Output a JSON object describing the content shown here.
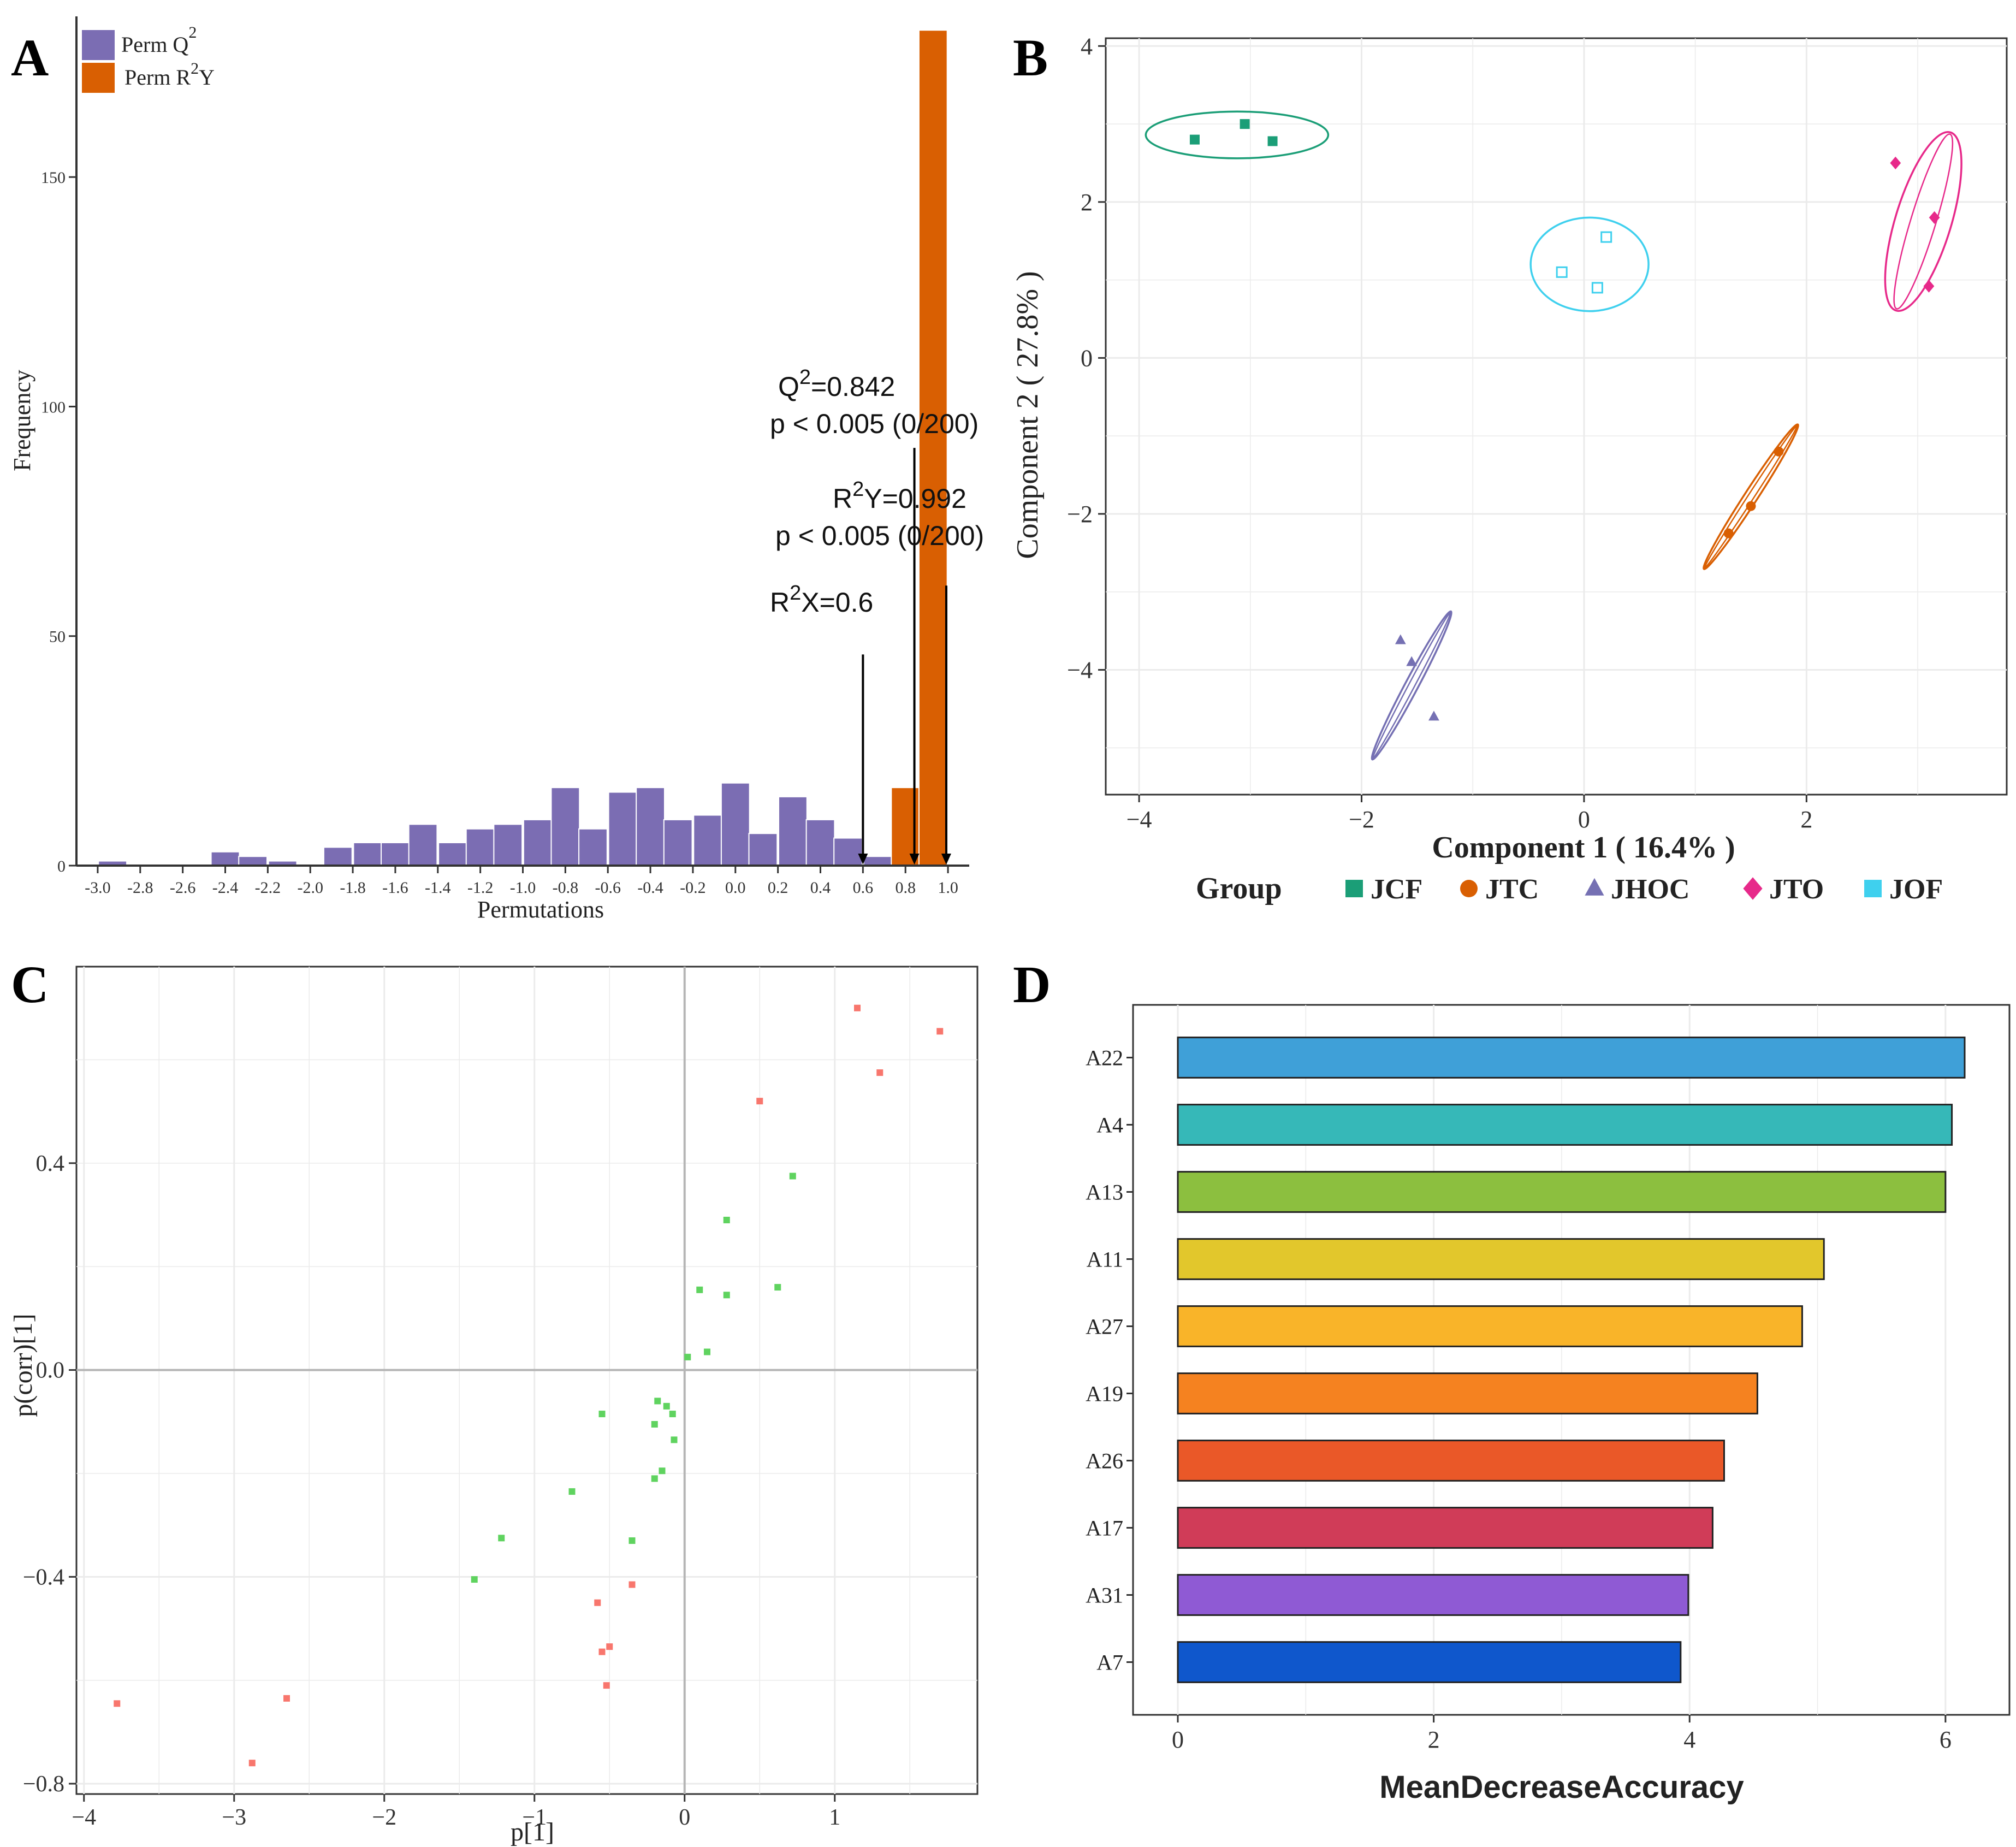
{
  "chart_data": [
    {
      "panel": "A",
      "type": "bar",
      "xlabel": "Permutations",
      "ylabel": "Frequency",
      "xlim": [
        -3.1,
        1.1
      ],
      "ylim": [
        0,
        185
      ],
      "xticks": [
        "-3.0",
        "-2.8",
        "-2.6",
        "-2.4",
        "-2.2",
        "-2.0",
        "-1.8",
        "-1.6",
        "-1.4",
        "-1.2",
        "-1.0",
        "-0.8",
        "-0.6",
        "-0.4",
        "-0.2",
        "0.0",
        "0.2",
        "0.4",
        "0.6",
        "0.8",
        "1.0"
      ],
      "xtick_values": [
        -3.0,
        -2.8,
        -2.6,
        -2.4,
        -2.2,
        -2.0,
        -1.8,
        -1.6,
        -1.4,
        -1.2,
        -1.0,
        -0.8,
        -0.6,
        -0.4,
        -0.2,
        0.0,
        0.2,
        0.4,
        0.6,
        0.8,
        1.0
      ],
      "yticks": [
        "0",
        "50",
        "100",
        "150"
      ],
      "ytick_values": [
        0,
        50,
        100,
        150
      ],
      "bin_width": 0.133,
      "series": [
        {
          "name": "Perm Q2",
          "legend_label": "Perm Q",
          "legend_sup": "2",
          "color": "#7b6db3",
          "x": [
            -2.93,
            -2.4,
            -2.27,
            -2.13,
            -1.87,
            -1.73,
            -1.6,
            -1.47,
            -1.33,
            -1.2,
            -1.07,
            -0.93,
            -0.8,
            -0.67,
            -0.53,
            -0.4,
            -0.27,
            -0.13,
            0.0,
            0.13,
            0.27,
            0.4,
            0.53,
            0.67
          ],
          "values": [
            1,
            3,
            2,
            1,
            4,
            5,
            5,
            9,
            5,
            8,
            9,
            10,
            17,
            8,
            16,
            17,
            10,
            11,
            18,
            7,
            15,
            10,
            6,
            2
          ]
        },
        {
          "name": "Perm R2Y",
          "legend_label": "Perm R",
          "legend_sup": "2",
          "legend_suffix": "Y",
          "color": "#d95f02",
          "x": [
            0.8,
            0.93
          ],
          "values": [
            17,
            182
          ]
        }
      ],
      "annotations": [
        {
          "lines": [
            [
              "Q",
              "2",
              "=0.842"
            ],
            [
              "p < 0.005 (0/200)"
            ]
          ],
          "arrow_x": 0.842,
          "arrow_top": 91
        },
        {
          "lines": [
            [
              "R",
              "2",
              "Y=0.992"
            ],
            [
              "p < 0.005 (0/200)"
            ]
          ],
          "arrow_x": 0.992,
          "arrow_top": 61
        },
        {
          "lines": [
            [
              "R",
              "2",
              "X=0.6"
            ]
          ],
          "arrow_x": 0.6,
          "arrow_top": 46
        }
      ]
    },
    {
      "panel": "B",
      "type": "scatter",
      "xlabel": "Component 1 ( 16.4% )",
      "ylabel": "Component 2 ( 27.8% )",
      "xlim": [
        -4.3,
        3.8
      ],
      "ylim": [
        -5.6,
        4.1
      ],
      "xticks": [
        "−4",
        "−2",
        "0",
        "2"
      ],
      "xtick_values": [
        -4,
        -2,
        0,
        2
      ],
      "yticks": [
        "−4",
        "−2",
        "0",
        "2",
        "4"
      ],
      "ytick_values": [
        -4,
        -2,
        0,
        2,
        4
      ],
      "legend_title": "Group",
      "series": [
        {
          "name": "JCF",
          "color": "#1b9e77",
          "shape": "square-filled",
          "points": [
            [
              -3.5,
              2.8
            ],
            [
              -3.05,
              3.0
            ],
            [
              -2.8,
              2.78
            ]
          ]
        },
        {
          "name": "JTC",
          "color": "#d95f02",
          "shape": "circle-filled",
          "points": [
            [
              1.3,
              -2.25
            ],
            [
              1.5,
              -1.9
            ],
            [
              1.75,
              -1.2
            ]
          ]
        },
        {
          "name": "JHOC",
          "color": "#7570b3",
          "shape": "triangle-filled",
          "points": [
            [
              -1.65,
              -3.62
            ],
            [
              -1.55,
              -3.9
            ],
            [
              -1.35,
              -4.6
            ]
          ]
        },
        {
          "name": "JTO",
          "color": "#e7298a",
          "shape": "diamond-filled",
          "points": [
            [
              2.8,
              2.5
            ],
            [
              3.15,
              1.8
            ],
            [
              3.1,
              0.92
            ]
          ]
        },
        {
          "name": "JOF",
          "color": "#3fd0ee",
          "shape": "square-open",
          "points": [
            [
              0.2,
              1.55
            ],
            [
              -0.2,
              1.1
            ],
            [
              0.12,
              0.9
            ]
          ]
        }
      ],
      "ellipses": [
        {
          "group": "JCF",
          "cx": -3.12,
          "cy": 2.86,
          "rx": 0.82,
          "ry": 0.3,
          "angle": 0
        },
        {
          "group": "JOF",
          "cx": 0.05,
          "cy": 1.2,
          "rx": 0.53,
          "ry": 0.6,
          "angle": 0
        },
        {
          "group": "JTO",
          "cx": 3.05,
          "cy": 1.75,
          "rx": 2.0,
          "ry": 0.3,
          "angle": -73
        },
        {
          "group": "JTC",
          "cx": 1.5,
          "cy": -1.78,
          "rx": 1.85,
          "ry": 0.05,
          "angle": -57
        },
        {
          "group": "JHOC",
          "cx": -1.55,
          "cy": -4.2,
          "rx": 1.8,
          "ry": 0.05,
          "angle": -62
        }
      ]
    },
    {
      "panel": "C",
      "type": "scatter",
      "xlabel": "p[1]",
      "ylabel": "p(corr)[1]",
      "xlim": [
        -4.05,
        1.95
      ],
      "ylim": [
        -0.82,
        0.78
      ],
      "xticks": [
        "−4",
        "−3",
        "−2",
        "−1",
        "0",
        "1"
      ],
      "xtick_values": [
        -4,
        -3,
        -2,
        -1,
        0,
        1
      ],
      "yticks": [
        "−0.8",
        "−0.4",
        "0.0",
        "0.4"
      ],
      "ytick_values": [
        -0.8,
        -0.4,
        0.0,
        0.4
      ],
      "series": [
        {
          "name": "red",
          "color": "#f8766d",
          "points": [
            [
              1.15,
              0.7
            ],
            [
              1.7,
              0.655
            ],
            [
              1.3,
              0.575
            ],
            [
              0.5,
              0.52
            ],
            [
              -0.35,
              -0.415
            ],
            [
              -0.58,
              -0.45
            ],
            [
              -0.55,
              -0.545
            ],
            [
              -0.5,
              -0.535
            ],
            [
              -0.52,
              -0.61
            ],
            [
              -2.65,
              -0.635
            ],
            [
              -3.78,
              -0.645
            ],
            [
              -2.88,
              -0.76
            ]
          ]
        },
        {
          "name": "green",
          "color": "#5fd35f",
          "points": [
            [
              0.72,
              0.375
            ],
            [
              0.28,
              0.29
            ],
            [
              0.1,
              0.155
            ],
            [
              0.28,
              0.145
            ],
            [
              0.62,
              0.16
            ],
            [
              0.15,
              0.035
            ],
            [
              0.02,
              0.025
            ],
            [
              -0.55,
              -0.085
            ],
            [
              -0.18,
              -0.06
            ],
            [
              -0.12,
              -0.07
            ],
            [
              -0.08,
              -0.085
            ],
            [
              -0.2,
              -0.105
            ],
            [
              -0.07,
              -0.135
            ],
            [
              -0.15,
              -0.195
            ],
            [
              -0.2,
              -0.21
            ],
            [
              -0.75,
              -0.235
            ],
            [
              -1.22,
              -0.325
            ],
            [
              -0.35,
              -0.33
            ],
            [
              -1.4,
              -0.405
            ]
          ]
        }
      ]
    },
    {
      "panel": "D",
      "type": "bar",
      "orientation": "horizontal",
      "xlabel": "MeanDecreaseAccuracy",
      "ylabel": "",
      "xlim": [
        -0.35,
        6.5
      ],
      "xticks": [
        "0",
        "2",
        "4",
        "6"
      ],
      "xtick_values": [
        0,
        2,
        4,
        6
      ],
      "categories": [
        "A22",
        "A4",
        "A13",
        "A11",
        "A27",
        "A19",
        "A26",
        "A17",
        "A31",
        "A7"
      ],
      "values": [
        6.15,
        6.05,
        6.0,
        5.05,
        4.88,
        4.53,
        4.27,
        4.18,
        3.99,
        3.93
      ],
      "colors": [
        "#3fa0d8",
        "#36b8b8",
        "#8cbf3f",
        "#e2c72c",
        "#f9b429",
        "#f58220",
        "#ea5828",
        "#d03c58",
        "#8f5ad4",
        "#0f57cc"
      ]
    }
  ],
  "panels": {
    "a": "A",
    "b": "B",
    "c": "C",
    "d": "D"
  },
  "styling": {
    "grid_color": "#ebebeb",
    "axis_color": "#333333",
    "text_color": "#222222"
  }
}
